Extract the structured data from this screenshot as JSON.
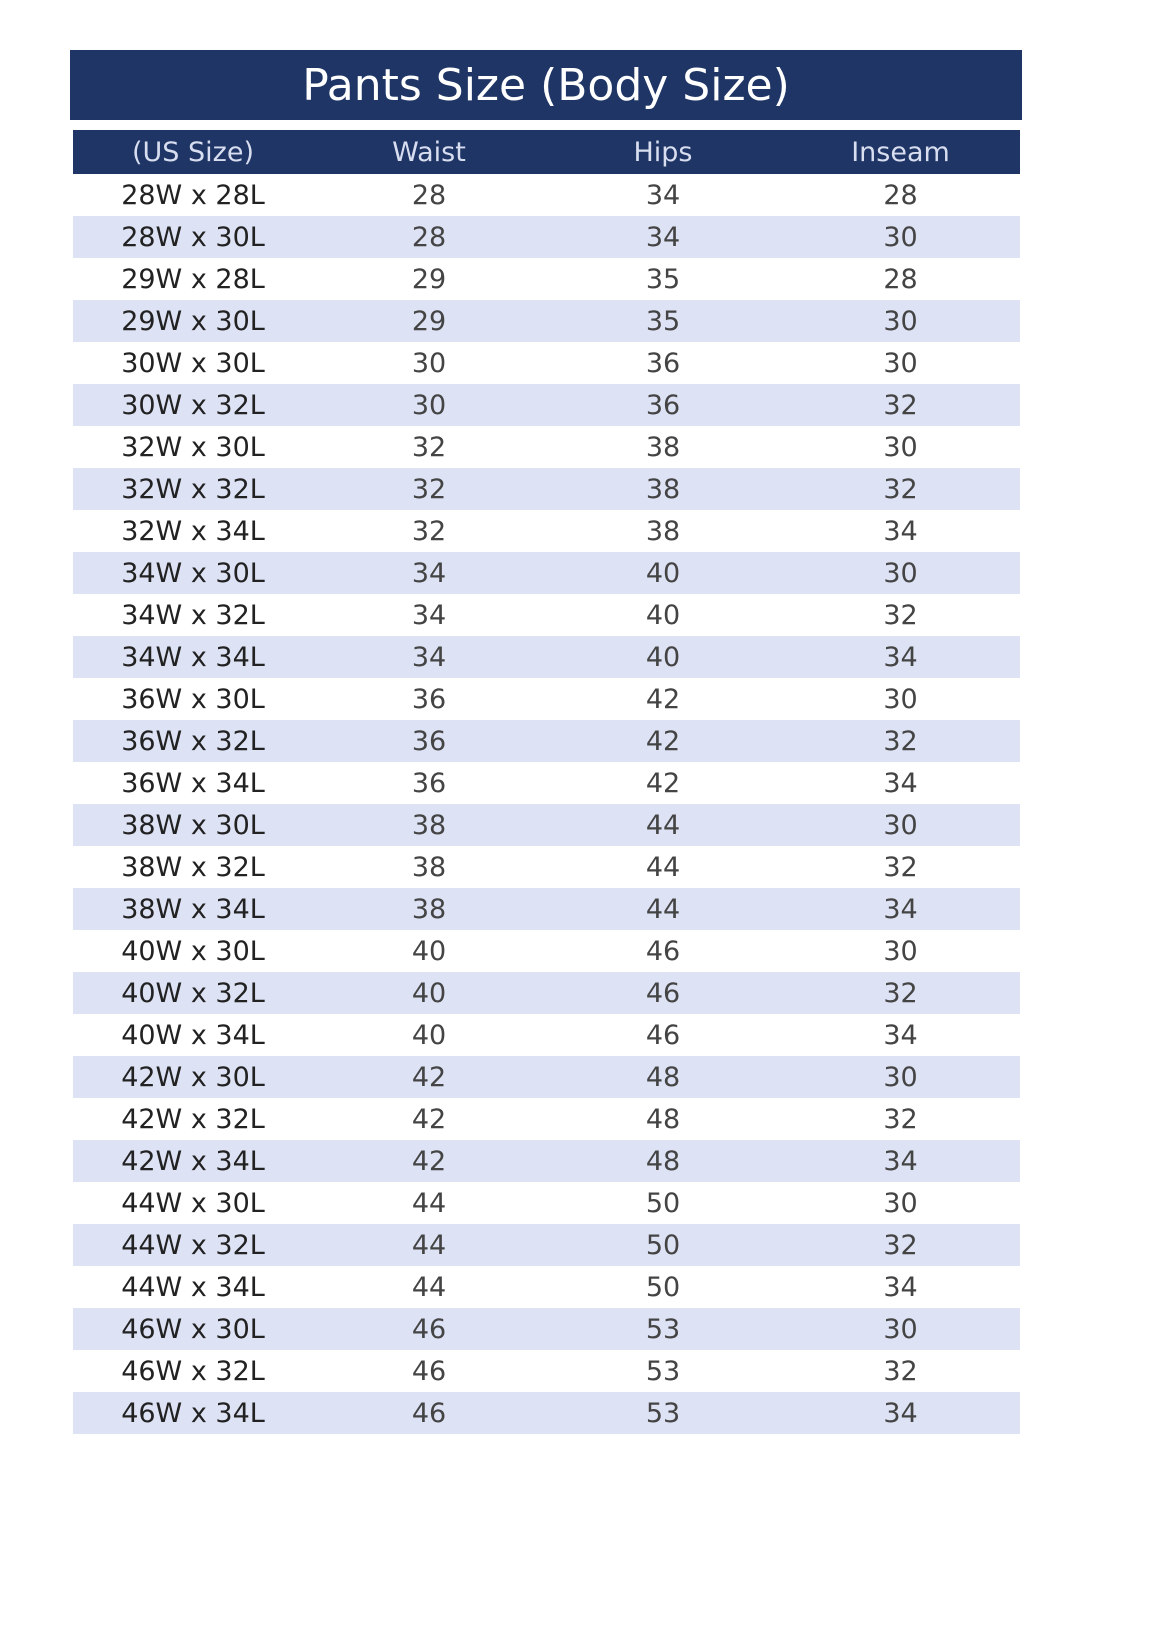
{
  "title": "Pants Size (Body Size)",
  "colors": {
    "header": "#1f3566",
    "stripe": "#dde3f5"
  },
  "columns": [
    "(US Size)",
    "Waist",
    "Hips",
    "Inseam"
  ],
  "rows": [
    [
      "28W x 28L",
      "28",
      "34",
      "28"
    ],
    [
      "28W x 30L",
      "28",
      "34",
      "30"
    ],
    [
      "29W x 28L",
      "29",
      "35",
      "28"
    ],
    [
      "29W x 30L",
      "29",
      "35",
      "30"
    ],
    [
      "30W x 30L",
      "30",
      "36",
      "30"
    ],
    [
      "30W x 32L",
      "30",
      "36",
      "32"
    ],
    [
      "32W x 30L",
      "32",
      "38",
      "30"
    ],
    [
      "32W x 32L",
      "32",
      "38",
      "32"
    ],
    [
      "32W x 34L",
      "32",
      "38",
      "34"
    ],
    [
      "34W x 30L",
      "34",
      "40",
      "30"
    ],
    [
      "34W x 32L",
      "34",
      "40",
      "32"
    ],
    [
      "34W x 34L",
      "34",
      "40",
      "34"
    ],
    [
      "36W x 30L",
      "36",
      "42",
      "30"
    ],
    [
      "36W x 32L",
      "36",
      "42",
      "32"
    ],
    [
      "36W x 34L",
      "36",
      "42",
      "34"
    ],
    [
      "38W x 30L",
      "38",
      "44",
      "30"
    ],
    [
      "38W x 32L",
      "38",
      "44",
      "32"
    ],
    [
      "38W x 34L",
      "38",
      "44",
      "34"
    ],
    [
      "40W x 30L",
      "40",
      "46",
      "30"
    ],
    [
      "40W x 32L",
      "40",
      "46",
      "32"
    ],
    [
      "40W x 34L",
      "40",
      "46",
      "34"
    ],
    [
      "42W x 30L",
      "42",
      "48",
      "30"
    ],
    [
      "42W x 32L",
      "42",
      "48",
      "32"
    ],
    [
      "42W x 34L",
      "42",
      "48",
      "34"
    ],
    [
      "44W x 30L",
      "44",
      "50",
      "30"
    ],
    [
      "44W x 32L",
      "44",
      "50",
      "32"
    ],
    [
      "44W x 34L",
      "44",
      "50",
      "34"
    ],
    [
      "46W x 30L",
      "46",
      "53",
      "30"
    ],
    [
      "46W x 32L",
      "46",
      "53",
      "32"
    ],
    [
      "46W x 34L",
      "46",
      "53",
      "34"
    ]
  ]
}
